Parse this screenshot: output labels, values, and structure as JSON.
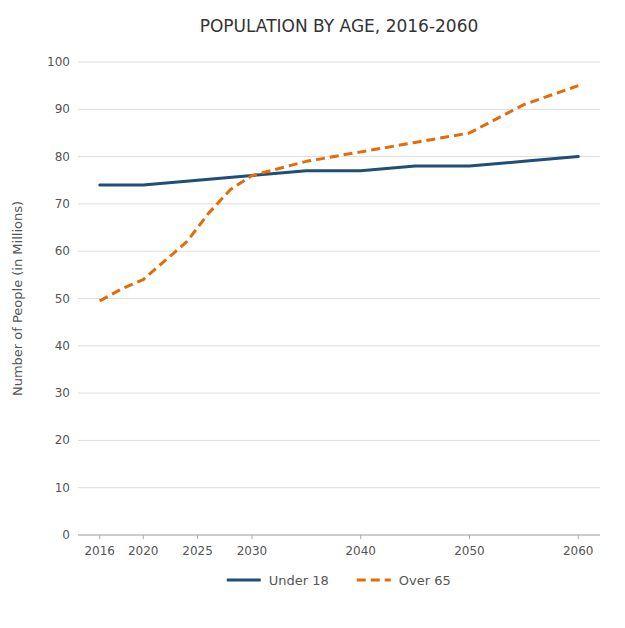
{
  "chart_data": {
    "type": "line",
    "title": "POPULATION BY AGE, 2016-2060",
    "y_label": "Number of People (in Millions)",
    "series": [
      {
        "name": "Under 18",
        "color": "#1f4e79",
        "line_style": "solid",
        "x": [
          2016,
          2020,
          2025,
          2030,
          2035,
          2040,
          2045,
          2050,
          2055,
          2060
        ],
        "values": [
          74,
          74,
          75,
          76,
          77,
          77,
          78,
          78,
          79,
          80
        ]
      },
      {
        "name": "Over 65",
        "color": "#e36c09",
        "line_style": "dashed",
        "x": [
          2016,
          2018,
          2020,
          2022,
          2024,
          2026,
          2028,
          2030,
          2035,
          2040,
          2045,
          2050,
          2055,
          2060
        ],
        "values": [
          49.5,
          52,
          54,
          58,
          62,
          68,
          73,
          76,
          79,
          81,
          83,
          85,
          91,
          95
        ]
      }
    ],
    "xlim": [
      2014,
      2062
    ],
    "ylim": [
      0,
      100
    ],
    "xticks": [
      2016,
      2020,
      2025,
      2030,
      2040,
      2050,
      2060
    ],
    "yticks": [
      0,
      10,
      20,
      30,
      40,
      50,
      60,
      70,
      80,
      90,
      100
    ],
    "grid": true,
    "legend": "bottom"
  }
}
